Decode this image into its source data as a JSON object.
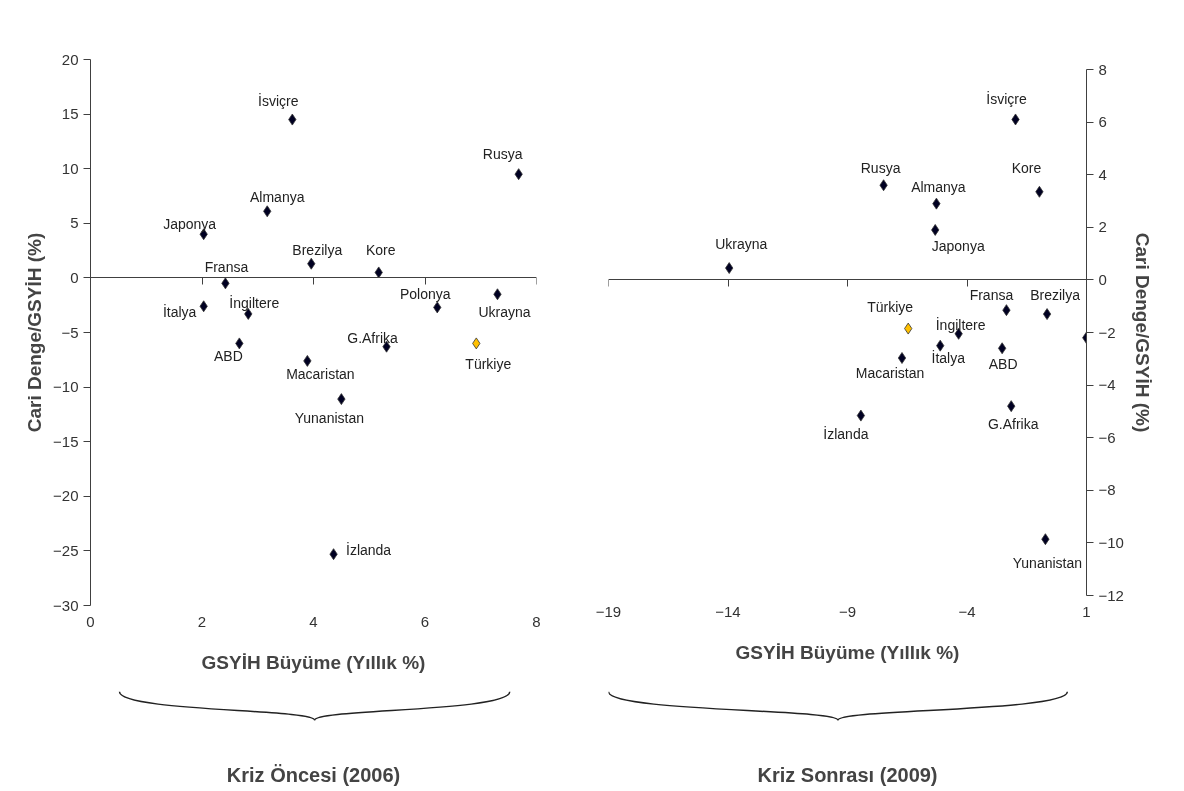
{
  "chart_data": [
    {
      "type": "scatter",
      "title": "Kriz Öncesi (2006)",
      "xlabel": "GSYİH Büyüme (Yıllık %)",
      "ylabel": "Cari Denge/GSYİH (%)",
      "xlim": [
        0,
        8
      ],
      "xticks": [
        0,
        2,
        4,
        6,
        8
      ],
      "ylim": [
        -30,
        20
      ],
      "yticks": [
        -30,
        -25,
        -20,
        -15,
        -10,
        -5,
        0,
        5,
        10,
        15,
        20
      ],
      "marker": "diamond",
      "series": [
        {
          "x": [
            3.62,
            7.68,
            3.17,
            2.03,
            3.96,
            5.17,
            2.42,
            2.03,
            2.83,
            6.22,
            7.3,
            2.67,
            5.31,
            6.92,
            3.89,
            4.5,
            4.36
          ],
          "values": [
            14.5,
            9.5,
            6.1,
            4.0,
            1.3,
            0.5,
            -0.5,
            -2.6,
            -3.3,
            -2.7,
            -1.5,
            -6.0,
            -6.3,
            -6.0,
            -7.6,
            -11.1,
            -25.3
          ],
          "colors": [
            "#000022",
            "#000022",
            "#000022",
            "#000022",
            "#000022",
            "#000022",
            "#000022",
            "#000022",
            "#000022",
            "#000022",
            "#000022",
            "#000022",
            "#000022",
            "#ffc000",
            "#000022",
            "#000022",
            "#000022"
          ]
        }
      ],
      "annotations": [
        {
          "text": "İsviçre",
          "x": 3.62,
          "y": 14.5
        },
        {
          "text": "Rusya",
          "x": 7.68,
          "y": 9.5
        },
        {
          "text": "Almanya",
          "x": 3.17,
          "y": 6.1
        },
        {
          "text": "Japonya",
          "x": 2.03,
          "y": 4.0
        },
        {
          "text": "Brezilya",
          "x": 3.96,
          "y": 1.3
        },
        {
          "text": "Kore",
          "x": 5.17,
          "y": 0.5
        },
        {
          "text": "Fransa",
          "x": 2.42,
          "y": -0.5
        },
        {
          "text": "İtalya",
          "x": 2.03,
          "y": -2.6
        },
        {
          "text": "İngiltere",
          "x": 2.83,
          "y": -3.3
        },
        {
          "text": "Polonya",
          "x": 6.22,
          "y": -2.7
        },
        {
          "text": "Ukrayna",
          "x": 7.3,
          "y": -1.5
        },
        {
          "text": "ABD",
          "x": 2.67,
          "y": -6.0
        },
        {
          "text": "G.Afrika",
          "x": 5.31,
          "y": -6.3
        },
        {
          "text": "Türkiye",
          "x": 6.92,
          "y": -6.0
        },
        {
          "text": "Macaristan",
          "x": 3.89,
          "y": -7.6
        },
        {
          "text": "Yunanistan",
          "x": 4.5,
          "y": -11.1
        },
        {
          "text": "İzlanda",
          "x": 4.36,
          "y": -25.3
        }
      ]
    },
    {
      "type": "scatter",
      "title": "Kriz Sonrası (2009)",
      "xlabel": "GSYİH Büyüme (Yıllık %)",
      "ylabel": "Cari Denge/GSYİH (%)",
      "xlim": [
        -19,
        1
      ],
      "xticks": [
        -19,
        -14,
        -9,
        -4,
        1
      ],
      "ylim": [
        -12,
        8
      ],
      "yticks": [
        -12,
        -10,
        -8,
        -6,
        -4,
        -2,
        0,
        2,
        4,
        6,
        8
      ],
      "marker": "diamond",
      "series": [
        {
          "x": [
            -1.97,
            -0.97,
            -7.49,
            -5.28,
            -5.33,
            -13.95,
            -2.35,
            -0.65,
            -6.46,
            -4.35,
            -5.12,
            -2.53,
            -6.72,
            -2.15,
            -8.44,
            -0.72,
            0.99
          ],
          "values": [
            6.1,
            3.35,
            3.6,
            2.9,
            1.9,
            0.45,
            -1.15,
            -1.3,
            -1.85,
            -2.05,
            -2.5,
            -2.6,
            -2.97,
            -4.8,
            -5.16,
            -9.86,
            -2.2
          ],
          "colors": [
            "#000022",
            "#000022",
            "#000022",
            "#000022",
            "#000022",
            "#000022",
            "#000022",
            "#000022",
            "#ffc000",
            "#000022",
            "#000022",
            "#000022",
            "#000022",
            "#000022",
            "#000022",
            "#000022",
            "#000022"
          ]
        }
      ],
      "annotations": [
        {
          "text": "İsviçre",
          "x": -1.97,
          "y": 6.1
        },
        {
          "text": "Kore",
          "x": -0.97,
          "y": 3.35
        },
        {
          "text": "Rusya",
          "x": -7.49,
          "y": 3.6
        },
        {
          "text": "Almanya",
          "x": -5.28,
          "y": 2.9
        },
        {
          "text": "Japonya",
          "x": -5.33,
          "y": 1.9
        },
        {
          "text": "Ukrayna",
          "x": -13.95,
          "y": 0.45
        },
        {
          "text": "Fransa",
          "x": -2.35,
          "y": -1.15
        },
        {
          "text": "Brezilya",
          "x": -0.65,
          "y": -1.3
        },
        {
          "text": "Türkiye",
          "x": -6.46,
          "y": -1.85
        },
        {
          "text": "İngiltere",
          "x": -4.35,
          "y": -2.05
        },
        {
          "text": "İtalya",
          "x": -5.12,
          "y": -2.5
        },
        {
          "text": "ABD",
          "x": -2.53,
          "y": -2.6
        },
        {
          "text": "Macaristan",
          "x": -6.72,
          "y": -2.97
        },
        {
          "text": "G.Afrika",
          "x": -2.15,
          "y": -4.8
        },
        {
          "text": "İzlanda",
          "x": -8.44,
          "y": -5.16
        },
        {
          "text": "Yunanistan",
          "x": -0.72,
          "y": -9.86
        }
      ]
    }
  ]
}
